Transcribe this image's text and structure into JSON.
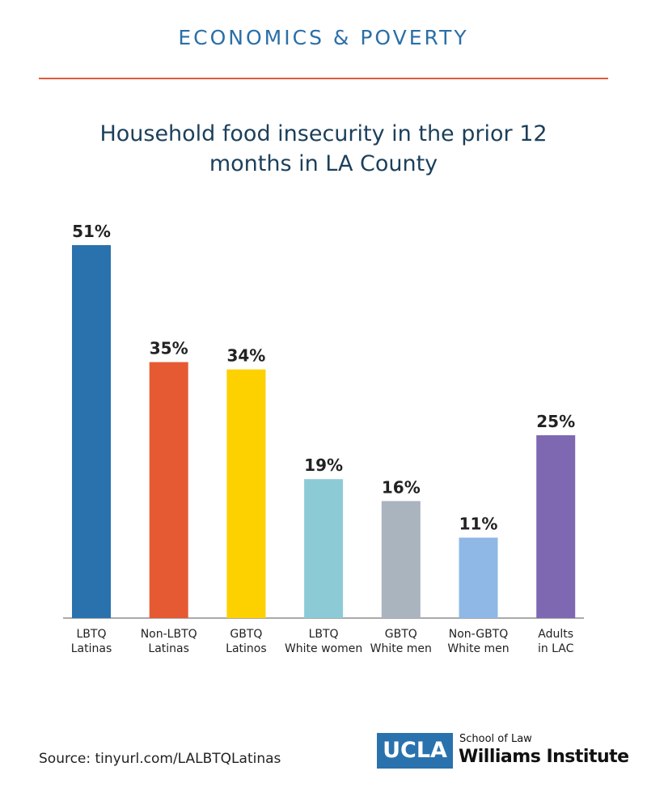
{
  "header": "ECONOMICS & POVERTY",
  "chart_data": {
    "type": "bar",
    "title": "Household food insecurity in the prior 12 months in LA County",
    "categories": [
      "LBTQ\nLatinas",
      "Non-LBTQ\nLatinas",
      "GBTQ\nLatinos",
      "LBTQ\nWhite women",
      "GBTQ\nWhite men",
      "Non-GBTQ\nWhite men",
      "Adults\nin LAC"
    ],
    "values": [
      51,
      35,
      34,
      19,
      16,
      11,
      25
    ],
    "value_labels": [
      "51%",
      "35%",
      "34%",
      "19%",
      "16%",
      "11%",
      "25%"
    ],
    "colors": [
      "#2a72ad",
      "#e55a33",
      "#fdd000",
      "#8ccbd6",
      "#a9b4bf",
      "#8fb8e6",
      "#7e68b2"
    ]
  },
  "source": "Source: tinyurl.com/LALBTQLatinas",
  "logo": {
    "mark": "UCLA",
    "school": "School of Law",
    "institute": "Williams Institute"
  }
}
